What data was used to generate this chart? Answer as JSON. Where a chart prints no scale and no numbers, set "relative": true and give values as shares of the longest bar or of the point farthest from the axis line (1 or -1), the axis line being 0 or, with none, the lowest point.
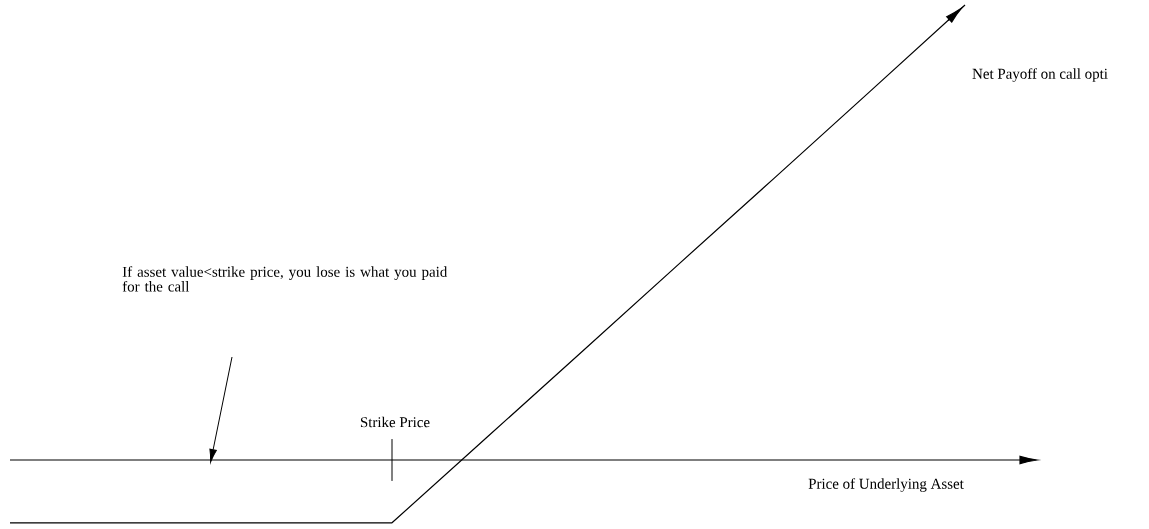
{
  "chart_data": {
    "type": "line",
    "relative": true,
    "xlabel": "Price of Underlying Asset",
    "categories": [
      null,
      null,
      null,
      null,
      null,
      null,
      null,
      null,
      null,
      null,
      null
    ],
    "series": [
      {
        "color": "#000000",
        "values": [
          -0.138,
          -0.138,
          -0.138,
          -0.138,
          -0.138,
          0.051,
          0.24,
          0.43,
          0.619,
          0.809,
          1
        ]
      }
    ],
    "marker": "none",
    "line_style": "solid",
    "annotations": [
      "Strike Price",
      "Net Payoff on call opti",
      "If asset value<strike price, you lose is what you paid for the call"
    ]
  }
}
